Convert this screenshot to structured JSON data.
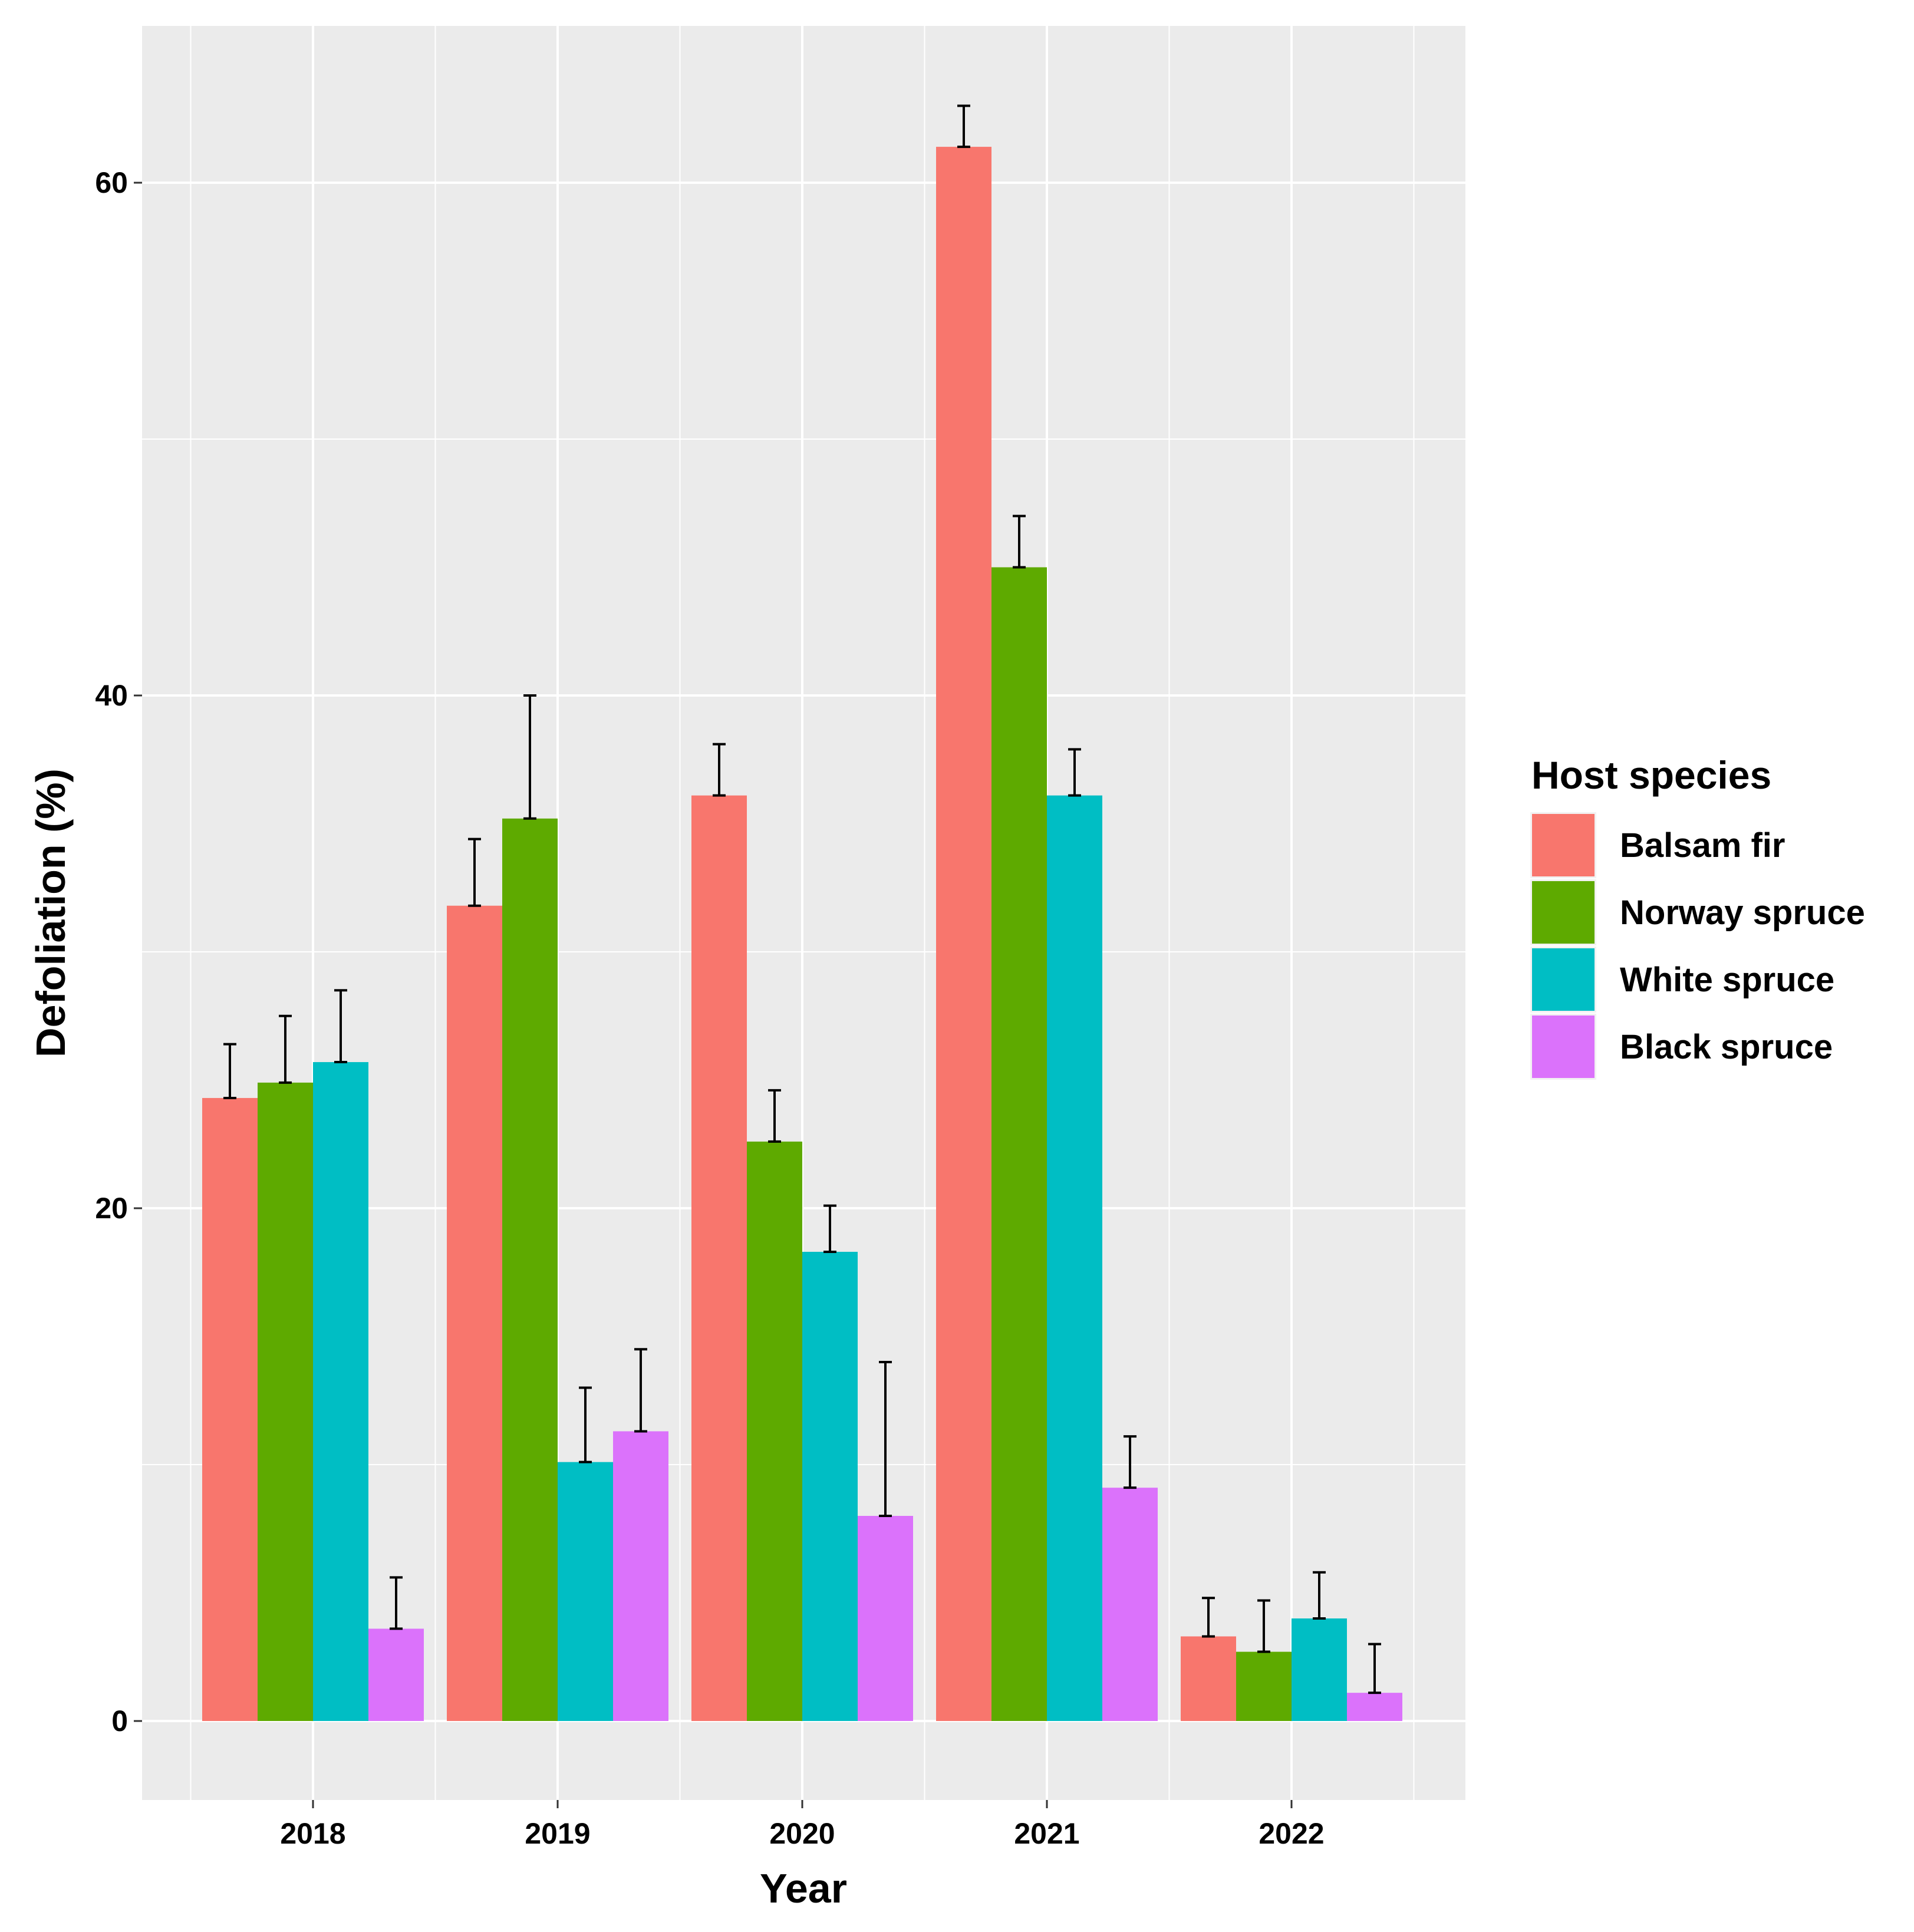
{
  "chart_data": {
    "type": "bar",
    "title": "",
    "xlabel": "Year",
    "ylabel": "Defoliation (%)",
    "categories": [
      "2018",
      "2019",
      "2020",
      "2021",
      "2022"
    ],
    "y_ticks": [
      "0",
      "20",
      "40",
      "60"
    ],
    "ylim": [
      -3,
      66
    ],
    "grid": true,
    "legend_title": "Host species",
    "legend_position": "right",
    "series": [
      {
        "name": "Balsam fir",
        "color": "#F8766D",
        "values": [
          24.3,
          31.8,
          36.1,
          61.4,
          3.3
        ],
        "errors": [
          2.1,
          2.6,
          2.0,
          1.6,
          1.5
        ]
      },
      {
        "name": "Norway spruce",
        "color": "#5EAA00",
        "values": [
          24.9,
          35.2,
          22.6,
          45.0,
          2.7
        ],
        "errors": [
          2.6,
          4.8,
          2.0,
          2.0,
          2.0
        ]
      },
      {
        "name": "White spruce",
        "color": "#00BEC4",
        "values": [
          25.7,
          10.1,
          18.3,
          36.1,
          4.0
        ],
        "errors": [
          2.8,
          2.9,
          1.8,
          1.8,
          1.8
        ]
      },
      {
        "name": "Black spruce",
        "color": "#DB72FB",
        "values": [
          3.6,
          11.3,
          8.0,
          9.1,
          1.1
        ],
        "errors": [
          2.0,
          3.2,
          6.0,
          2.0,
          1.9
        ]
      }
    ]
  }
}
